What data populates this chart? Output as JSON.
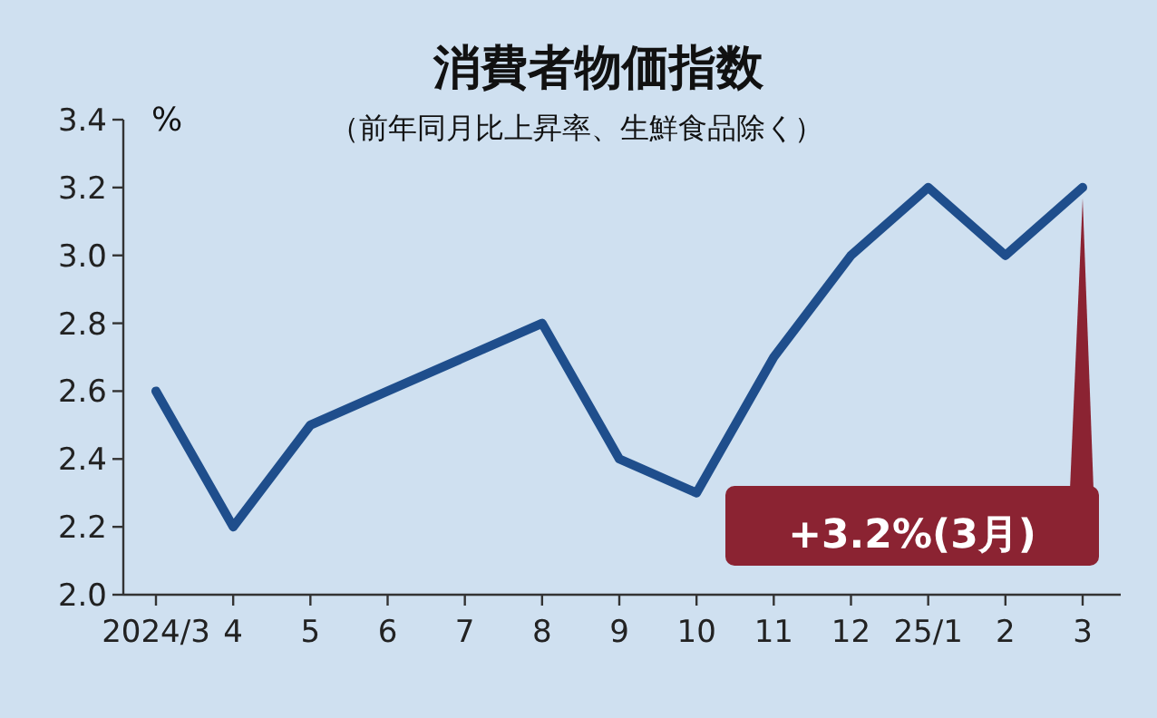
{
  "chart_data": {
    "type": "line",
    "title": "消費者物価指数",
    "subtitle": "（前年同月比上昇率、生鮮食品除く）",
    "ylabel": "%",
    "categories": [
      "2024/3",
      "4",
      "5",
      "6",
      "7",
      "8",
      "9",
      "10",
      "11",
      "12",
      "25/1",
      "2",
      "3"
    ],
    "series": [
      {
        "color": "#1f4e8c",
        "values": [
          2.6,
          2.2,
          2.5,
          2.6,
          2.7,
          2.8,
          2.4,
          2.3,
          2.7,
          3.0,
          3.2,
          3.0,
          3.2
        ]
      }
    ],
    "ylim": [
      2.0,
      3.4
    ],
    "yticks": [
      {
        "value": 2.0,
        "label": "2.0"
      },
      {
        "value": 2.2,
        "label": "2.2"
      },
      {
        "value": 2.4,
        "label": "2.4"
      },
      {
        "value": 2.6,
        "label": "2.6"
      },
      {
        "value": 2.8,
        "label": "2.8"
      },
      {
        "value": 3.0,
        "label": "3.0"
      },
      {
        "value": 3.2,
        "label": "3.2"
      },
      {
        "value": 3.4,
        "label": "3.4"
      }
    ],
    "grid": false,
    "marker": "none",
    "line_style": "solid",
    "annotations": [
      {
        "text": "+3.2%(3月)",
        "x": "3",
        "y": 3.2
      }
    ]
  }
}
